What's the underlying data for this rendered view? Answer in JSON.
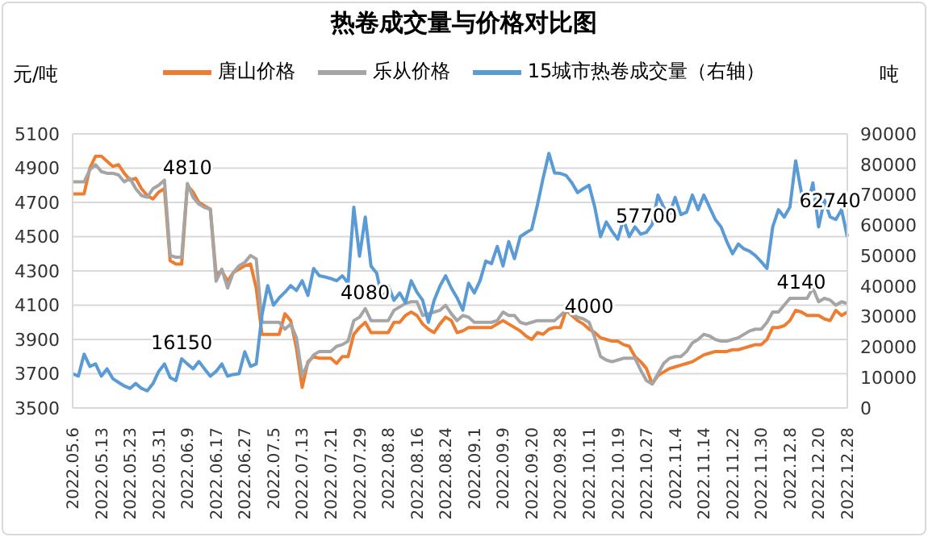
{
  "chart_data": {
    "type": "line",
    "title": "热卷成交量与价格对比图",
    "ylabel": "元/吨",
    "y2label": "吨",
    "categories": [
      "2022.05.6",
      null,
      null,
      null,
      null,
      "2022.05.13",
      null,
      null,
      null,
      null,
      "2022.05.23",
      null,
      null,
      null,
      null,
      "2022.05.31",
      null,
      null,
      null,
      null,
      "2022.06.9",
      null,
      null,
      null,
      null,
      "2022.06.17",
      null,
      null,
      null,
      null,
      "2022.06.27",
      null,
      null,
      null,
      null,
      "2022.07.5",
      null,
      null,
      null,
      null,
      "2022.07.13",
      null,
      null,
      null,
      null,
      "2022.07.21",
      null,
      null,
      null,
      null,
      "2022.07.29",
      null,
      null,
      null,
      null,
      "2022.08.8",
      null,
      null,
      null,
      null,
      "2022.08.16",
      null,
      null,
      null,
      null,
      "2022.08.24",
      null,
      null,
      null,
      null,
      "2022.09.1",
      null,
      null,
      null,
      null,
      "2022.09.9",
      null,
      null,
      null,
      null,
      "2022.09.20",
      null,
      null,
      null,
      null,
      "2022.09.28",
      null,
      null,
      null,
      null,
      "2022.10.11",
      null,
      null,
      null,
      null,
      "2022.10.19",
      null,
      null,
      null,
      null,
      "2022.10.27",
      null,
      null,
      null,
      null,
      "2022.11.4",
      null,
      null,
      null,
      null,
      "2022.11.14",
      null,
      null,
      null,
      null,
      "2022.11.22",
      null,
      null,
      null,
      null,
      "2022.11.30",
      null,
      null,
      null,
      null,
      "2022.12.8",
      null,
      null,
      null,
      null,
      "2022.12.20",
      null,
      null,
      null,
      null,
      "2022.12.28"
    ],
    "series": [
      {
        "name": "唐山价格",
        "color": "#ed7d31",
        "values": [
          4750,
          4750,
          4750,
          4900,
          4970,
          4970,
          4940,
          4910,
          4920,
          4870,
          4830,
          4840,
          4780,
          4740,
          4720,
          4760,
          4780,
          4360,
          4340,
          4340,
          4800,
          4760,
          4700,
          4680,
          4660,
          4280,
          4300,
          4240,
          4290,
          4310,
          4330,
          4340,
          4200,
          3930,
          3930,
          3930,
          3930,
          4050,
          4010,
          3850,
          3620,
          3770,
          3800,
          3790,
          3790,
          3790,
          3760,
          3800,
          3800,
          3930,
          3970,
          4000,
          3940,
          3940,
          3940,
          3940,
          4000,
          4000,
          4040,
          4060,
          4040,
          3990,
          3960,
          3940,
          3990,
          4030,
          4010,
          3940,
          3950,
          3970,
          3970,
          3970,
          3970,
          3970,
          3990,
          4010,
          3990,
          3970,
          3950,
          3920,
          3900,
          3940,
          3930,
          3960,
          3970,
          3970,
          4070,
          4040,
          4010,
          3990,
          3960,
          3940,
          3910,
          3900,
          3890,
          3890,
          3870,
          3860,
          3800,
          3770,
          3730,
          3640,
          3690,
          3710,
          3730,
          3740,
          3750,
          3760,
          3770,
          3790,
          3810,
          3820,
          3830,
          3830,
          3830,
          3840,
          3840,
          3850,
          3860,
          3870,
          3870,
          3900,
          3970,
          3970,
          3980,
          4010,
          4070,
          4060,
          4040,
          4040,
          4040,
          4020,
          4010,
          4070,
          4040,
          4060
        ]
      },
      {
        "name": "乐从价格",
        "color": "#a5a5a5",
        "values": [
          4820,
          4820,
          4820,
          4890,
          4920,
          4880,
          4870,
          4870,
          4860,
          4820,
          4840,
          4780,
          4740,
          4730,
          4780,
          4800,
          4830,
          4390,
          4380,
          4380,
          4810,
          4730,
          4690,
          4670,
          4660,
          4240,
          4310,
          4200,
          4290,
          4330,
          4350,
          4390,
          4370,
          4000,
          4000,
          4000,
          4000,
          3960,
          3990,
          3910,
          3690,
          3760,
          3810,
          3830,
          3830,
          3830,
          3860,
          3870,
          3890,
          4010,
          4030,
          4080,
          4010,
          4010,
          4010,
          4010,
          4070,
          4090,
          4110,
          4120,
          4120,
          4040,
          4050,
          4060,
          4070,
          4100,
          4050,
          4010,
          4040,
          4030,
          4000,
          4000,
          4000,
          4000,
          4010,
          4060,
          4040,
          4040,
          4000,
          3990,
          4000,
          4010,
          4010,
          4010,
          4010,
          4040,
          4070,
          4050,
          4030,
          4020,
          4000,
          3910,
          3800,
          3780,
          3770,
          3780,
          3790,
          3790,
          3790,
          3720,
          3660,
          3640,
          3700,
          3760,
          3790,
          3800,
          3800,
          3830,
          3880,
          3900,
          3930,
          3920,
          3900,
          3890,
          3890,
          3900,
          3910,
          3930,
          3950,
          3960,
          3960,
          4000,
          4060,
          4060,
          4100,
          4140,
          4140,
          4140,
          4140,
          4200,
          4120,
          4140,
          4130,
          4100,
          4120,
          4110
        ],
        "value_labels": [
          null,
          null,
          null,
          null,
          null,
          null,
          null,
          null,
          null,
          null,
          null,
          null,
          null,
          null,
          null,
          null,
          null,
          null,
          null,
          null,
          "4810",
          null,
          null,
          null,
          null,
          null,
          null,
          null,
          null,
          null,
          null,
          null,
          null,
          null,
          null,
          null,
          null,
          null,
          null,
          null,
          null,
          null,
          null,
          null,
          null,
          null,
          null,
          null,
          null,
          null,
          null,
          "4080",
          null,
          null,
          null,
          null,
          null,
          null,
          null,
          null,
          null,
          null,
          null,
          null,
          null,
          null,
          null,
          null,
          null,
          null,
          null,
          null,
          null,
          null,
          null,
          null,
          null,
          null,
          null,
          null,
          null,
          null,
          null,
          null,
          null,
          null,
          null,
          null,
          null,
          null,
          "4000",
          null,
          null,
          null,
          null,
          null,
          null,
          null,
          null,
          null,
          null,
          null,
          null,
          null,
          null,
          null,
          null,
          null,
          null,
          null,
          null,
          null,
          null,
          null,
          null,
          null,
          null,
          null,
          null,
          null,
          null,
          null,
          null,
          null,
          null,
          null,
          null,
          "4140",
          null,
          null,
          null,
          null,
          null,
          null,
          null,
          null
        ]
      },
      {
        "name": "15城市热卷成交量（右轴）",
        "color": "#5b9bd5",
        "axis": "y2",
        "values": [
          11250,
          10450,
          17680,
          13660,
          14460,
          10450,
          12860,
          9640,
          8400,
          7230,
          6430,
          8040,
          6430,
          5620,
          8000,
          12000,
          14460,
          10000,
          9000,
          16150,
          14460,
          12860,
          15270,
          12800,
          10450,
          12000,
          14460,
          10450,
          11000,
          11250,
          18480,
          13660,
          14460,
          30530,
          40180,
          33750,
          36160,
          38000,
          40180,
          38570,
          41780,
          36960,
          45800,
          43390,
          43000,
          42500,
          41780,
          43390,
          40980,
          65890,
          49820,
          62680,
          46610,
          44190,
          35360,
          40180,
          35360,
          37770,
          34550,
          41780,
          38000,
          35360,
          28120,
          35360,
          40000,
          43390,
          39370,
          36160,
          32140,
          40980,
          37770,
          41780,
          48210,
          47410,
          53030,
          46610,
          54640,
          49020,
          56250,
          57500,
          58660,
          66690,
          75530,
          83570,
          77140,
          77000,
          76340,
          73920,
          70710,
          72000,
          73120,
          65890,
          56250,
          61070,
          58000,
          55440,
          61870,
          56250,
          59460,
          57050,
          57700,
          60270,
          69910,
          65890,
          63480,
          69110,
          63480,
          64290,
          69910,
          65090,
          69910,
          65890,
          61870,
          59460,
          54640,
          50620,
          53830,
          52230,
          51430,
          50000,
          48000,
          45800,
          59460,
          65090,
          62680,
          66000,
          81160,
          70710,
          65890,
          73920,
          59460,
          68300,
          62740,
          61870,
          65090,
          56250
        ],
        "value_labels": [
          null,
          null,
          null,
          null,
          null,
          null,
          null,
          null,
          null,
          null,
          null,
          null,
          null,
          null,
          null,
          null,
          null,
          null,
          null,
          "16150",
          null,
          null,
          null,
          null,
          null,
          null,
          null,
          null,
          null,
          null,
          null,
          null,
          null,
          null,
          null,
          null,
          null,
          null,
          null,
          null,
          null,
          null,
          null,
          null,
          null,
          null,
          null,
          null,
          null,
          null,
          null,
          null,
          null,
          null,
          null,
          null,
          null,
          null,
          null,
          null,
          null,
          null,
          null,
          null,
          null,
          null,
          null,
          null,
          null,
          null,
          null,
          null,
          null,
          null,
          null,
          null,
          null,
          null,
          null,
          null,
          null,
          null,
          null,
          null,
          null,
          null,
          null,
          null,
          null,
          null,
          null,
          null,
          null,
          null,
          null,
          null,
          null,
          null,
          null,
          null,
          "57700",
          null,
          null,
          null,
          null,
          null,
          null,
          null,
          null,
          null,
          null,
          null,
          null,
          null,
          null,
          null,
          null,
          null,
          null,
          null,
          null,
          null,
          null,
          null,
          null,
          null,
          null,
          null,
          null,
          null,
          null,
          null,
          "62740",
          null,
          null,
          null
        ]
      }
    ],
    "ylim": [
      3500,
      5100
    ],
    "yticks": [
      3500,
      3700,
      3900,
      4100,
      4300,
      4500,
      4700,
      4900,
      5100
    ],
    "y2lim": [
      0,
      90000
    ],
    "y2ticks": [
      0,
      10000,
      20000,
      30000,
      40000,
      50000,
      60000,
      70000,
      80000,
      90000
    ],
    "grid": "y",
    "legend": "top",
    "marker": "none",
    "line_style": "solid"
  }
}
